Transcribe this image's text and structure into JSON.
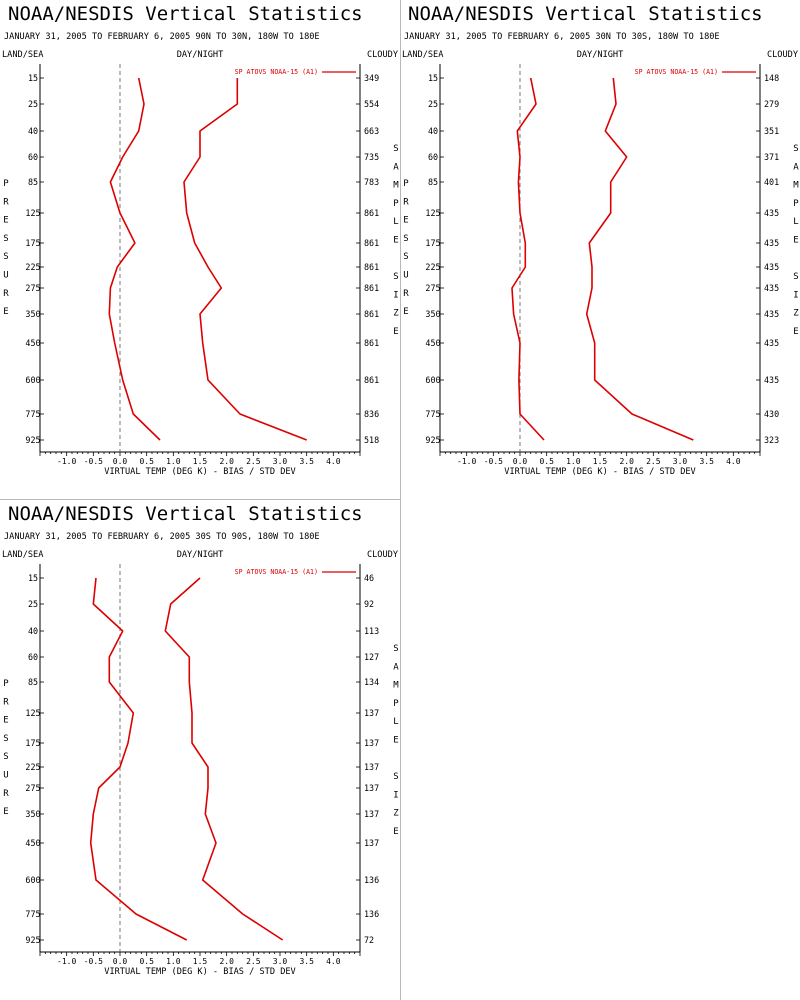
{
  "chart_data": [
    {
      "type": "line",
      "title": "NOAA/NESDIS Vertical Statistics",
      "subtitle": "JANUARY 31, 2005 TO FEBRUARY 6, 2005  90N TO 30N, 180W TO 180E",
      "header_left": "LAND/SEA",
      "header_center": "DAY/NIGHT",
      "header_right": "CLOUDY",
      "ylabel": "PRESSURE",
      "ylabel_right": "SAMPLE SIZE",
      "xlabel": "VIRTUAL TEMP (DEG K) - BIAS / STD DEV",
      "xlim": [
        -1.5,
        4.5
      ],
      "x_ticks": [
        "-1.0",
        "-0.5",
        "0.0",
        "0.5",
        "1.0",
        "1.5",
        "2.0",
        "2.5",
        "3.0",
        "3.5",
        "4.0"
      ],
      "pressure_levels": [
        "15",
        "25",
        "40",
        "60",
        "85",
        "125",
        "175",
        "225",
        "275",
        "350",
        "450",
        "600",
        "775",
        "925"
      ],
      "sample_sizes": [
        "349",
        "554",
        "663",
        "735",
        "783",
        "861",
        "861",
        "861",
        "861",
        "861",
        "861",
        "861",
        "836",
        "518"
      ],
      "legend": "SP ATOVS NOAA-15 (A1)",
      "series_color": "#dd0000",
      "series": [
        {
          "role": "bias",
          "values": [
            0.35,
            0.45,
            0.35,
            0.05,
            -0.18,
            0.0,
            0.28,
            -0.05,
            -0.18,
            -0.2,
            -0.1,
            0.05,
            0.25,
            0.75
          ]
        },
        {
          "role": "std_dev",
          "values": [
            2.2,
            2.2,
            1.5,
            1.5,
            1.2,
            1.25,
            1.4,
            1.65,
            1.9,
            1.5,
            1.55,
            1.65,
            2.25,
            3.5
          ]
        }
      ]
    },
    {
      "type": "line",
      "title": "NOAA/NESDIS Vertical Statistics",
      "subtitle": "JANUARY 31, 2005 TO FEBRUARY 6, 2005  30N TO 30S, 180W TO 180E",
      "header_left": "LAND/SEA",
      "header_center": "DAY/NIGHT",
      "header_right": "CLOUDY",
      "ylabel": "PRESSURE",
      "ylabel_right": "SAMPLE SIZE",
      "xlabel": "VIRTUAL TEMP (DEG K) - BIAS / STD DEV",
      "xlim": [
        -1.5,
        4.5
      ],
      "x_ticks": [
        "-1.0",
        "-0.5",
        "0.0",
        "0.5",
        "1.0",
        "1.5",
        "2.0",
        "2.5",
        "3.0",
        "3.5",
        "4.0"
      ],
      "pressure_levels": [
        "15",
        "25",
        "40",
        "60",
        "85",
        "125",
        "175",
        "225",
        "275",
        "350",
        "450",
        "600",
        "775",
        "925"
      ],
      "sample_sizes": [
        "148",
        "279",
        "351",
        "371",
        "401",
        "435",
        "435",
        "435",
        "435",
        "435",
        "435",
        "435",
        "430",
        "323"
      ],
      "legend": "SP ATOVS NOAA-15 (A1)",
      "series_color": "#dd0000",
      "series": [
        {
          "role": "bias",
          "values": [
            0.2,
            0.3,
            -0.05,
            0.0,
            -0.03,
            0.0,
            0.1,
            0.1,
            -0.15,
            -0.12,
            0.0,
            -0.02,
            0.0,
            0.45
          ]
        },
        {
          "role": "std_dev",
          "values": [
            1.75,
            1.8,
            1.6,
            2.0,
            1.7,
            1.7,
            1.3,
            1.35,
            1.35,
            1.25,
            1.4,
            1.4,
            2.1,
            3.25
          ]
        }
      ]
    },
    {
      "type": "line",
      "title": "NOAA/NESDIS Vertical Statistics",
      "subtitle": "JANUARY 31, 2005 TO FEBRUARY 6, 2005  30S TO 90S, 180W TO 180E",
      "header_left": "LAND/SEA",
      "header_center": "DAY/NIGHT",
      "header_right": "CLOUDY",
      "ylabel": "PRESSURE",
      "ylabel_right": "SAMPLE SIZE",
      "xlabel": "VIRTUAL TEMP (DEG K) - BIAS / STD DEV",
      "xlim": [
        -1.5,
        4.5
      ],
      "x_ticks": [
        "-1.0",
        "-0.5",
        "0.0",
        "0.5",
        "1.0",
        "1.5",
        "2.0",
        "2.5",
        "3.0",
        "3.5",
        "4.0"
      ],
      "pressure_levels": [
        "15",
        "25",
        "40",
        "60",
        "85",
        "125",
        "175",
        "225",
        "275",
        "350",
        "450",
        "600",
        "775",
        "925"
      ],
      "sample_sizes": [
        "46",
        "92",
        "113",
        "127",
        "134",
        "137",
        "137",
        "137",
        "137",
        "137",
        "137",
        "136",
        "136",
        "72"
      ],
      "legend": "SP ATOVS NOAA-15 (A1)",
      "series_color": "#dd0000",
      "series": [
        {
          "role": "bias",
          "values": [
            -0.45,
            -0.5,
            0.05,
            -0.2,
            -0.2,
            0.25,
            0.15,
            0.0,
            -0.4,
            -0.5,
            -0.55,
            -0.45,
            0.3,
            1.25
          ]
        },
        {
          "role": "std_dev",
          "values": [
            1.5,
            0.95,
            0.85,
            1.3,
            1.3,
            1.35,
            1.35,
            1.65,
            1.65,
            1.6,
            1.8,
            1.55,
            2.3,
            3.05
          ]
        }
      ]
    }
  ]
}
